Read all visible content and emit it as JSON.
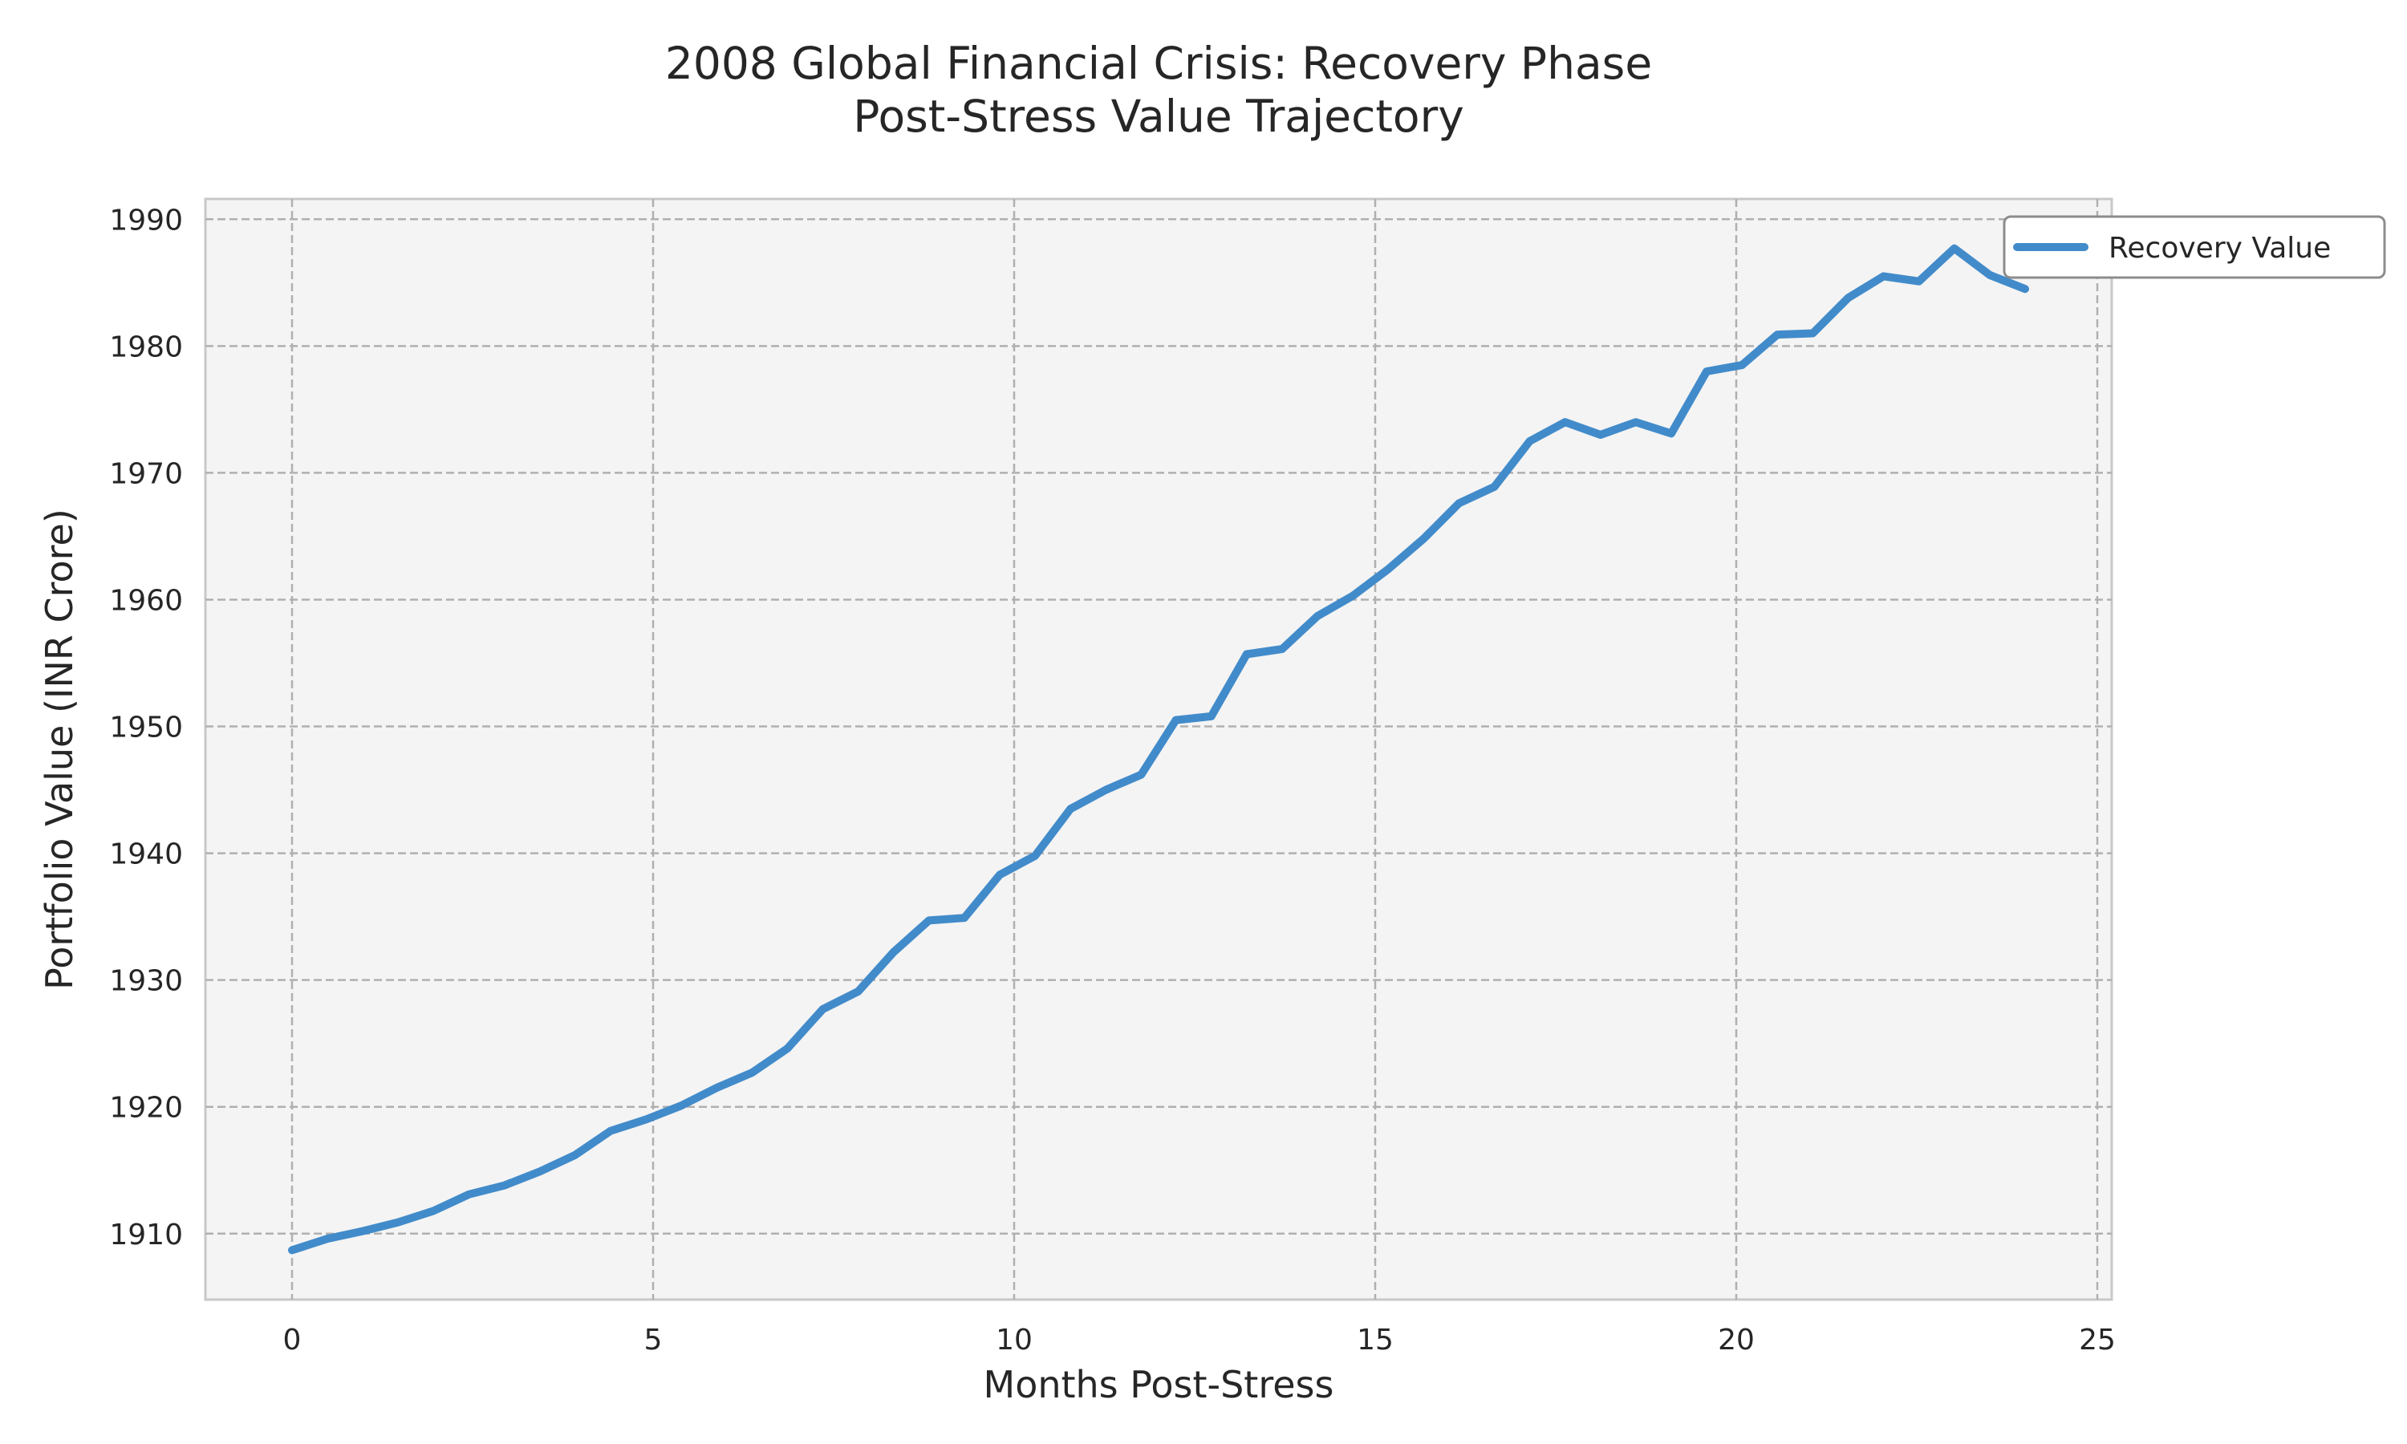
{
  "chart_data": {
    "type": "line",
    "title": "2008 Global Financial Crisis: Recovery Phase\nPost-Stress Value Trajectory",
    "xlabel": "Months Post-Stress",
    "ylabel": "Portfolio Value (INR Crore)",
    "xlim": [
      -1.2,
      25.2
    ],
    "ylim": [
      1904.8,
      1991.6
    ],
    "xticks": [
      0,
      5,
      10,
      15,
      20,
      25
    ],
    "yticks": [
      1910,
      1920,
      1930,
      1940,
      1950,
      1960,
      1970,
      1980,
      1990
    ],
    "grid": true,
    "legend_position": "top-right",
    "colors": {
      "series": "#428bca",
      "plot_background": "#f4f4f4",
      "grid": "#b0b0b0"
    },
    "series": [
      {
        "name": "Recovery Value",
        "x": [
          0,
          0.49,
          0.98,
          1.47,
          1.96,
          2.45,
          2.94,
          3.43,
          3.92,
          4.41,
          4.9,
          5.39,
          5.88,
          6.37,
          6.86,
          7.35,
          7.84,
          8.33,
          8.82,
          9.31,
          9.8,
          10.29,
          10.78,
          11.27,
          11.76,
          12.24,
          12.73,
          13.22,
          13.71,
          14.2,
          14.69,
          15.18,
          15.67,
          16.16,
          16.65,
          17.14,
          17.63,
          18.12,
          18.61,
          19.1,
          19.59,
          20.08,
          20.57,
          21.06,
          21.55,
          22.04,
          22.53,
          23.02,
          23.51,
          24.0
        ],
        "values": [
          1908.7,
          1909.6,
          1910.2,
          1910.9,
          1911.8,
          1913.1,
          1913.8,
          1914.9,
          1916.2,
          1918.1,
          1919.0,
          1920.1,
          1921.5,
          1922.7,
          1924.6,
          1927.7,
          1929.1,
          1932.2,
          1934.7,
          1934.9,
          1938.3,
          1939.8,
          1943.5,
          1945.0,
          1946.2,
          1950.5,
          1950.8,
          1955.7,
          1956.1,
          1958.7,
          1960.3,
          1962.4,
          1964.8,
          1967.6,
          1968.9,
          1972.5,
          1974.0,
          1973.0,
          1974.0,
          1973.1,
          1978.0,
          1978.5,
          1980.9,
          1981.0,
          1983.8,
          1985.5,
          1985.1,
          1987.7,
          1985.6,
          1984.5
        ]
      }
    ]
  }
}
